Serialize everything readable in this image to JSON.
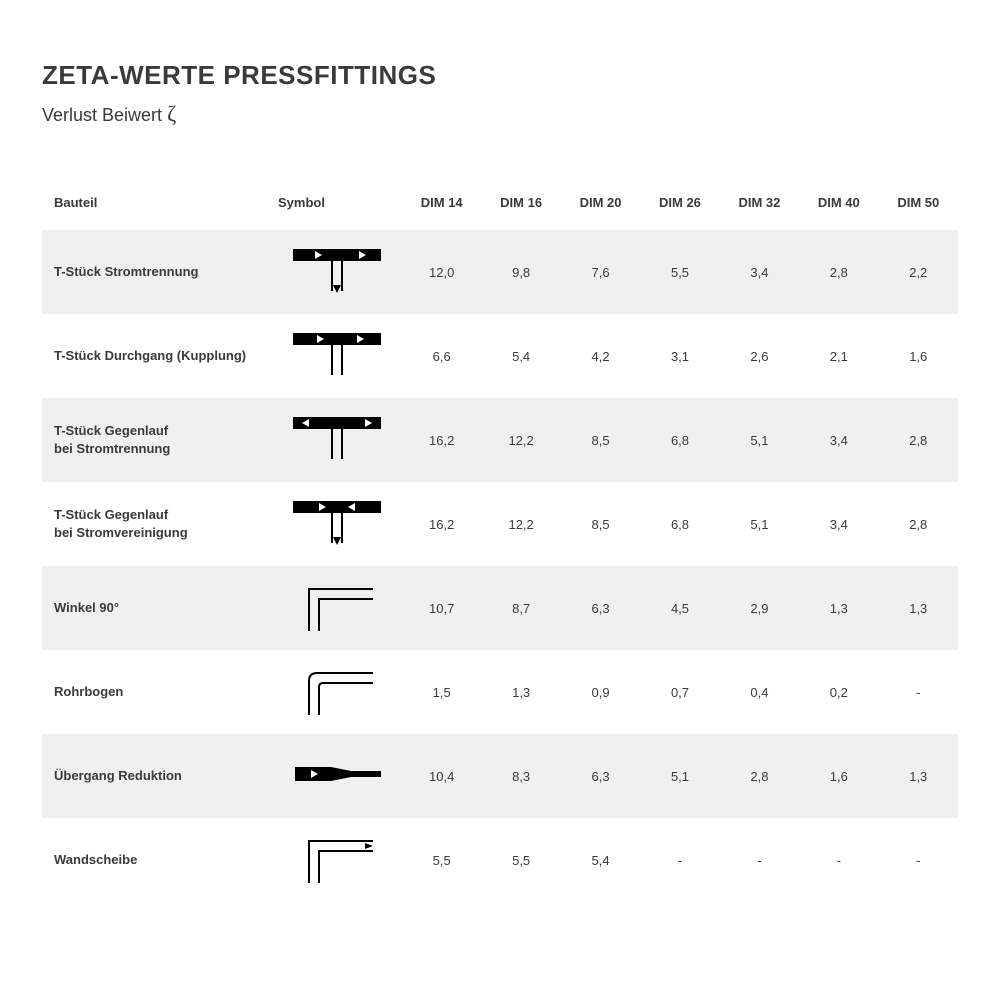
{
  "title": "ZETA-WERTE PRESSFITTINGS",
  "subtitle_prefix": "Verlust Beiwert ",
  "subtitle_symbol": "ζ",
  "colors": {
    "text": "#3a3a3a",
    "row_shade": "#f0f0f0",
    "background": "#ffffff",
    "symbol_stroke": "#000000"
  },
  "table": {
    "header_bauteil": "Bauteil",
    "header_symbol": "Symbol",
    "dim_headers": [
      "DIM 14",
      "DIM 16",
      "DIM 20",
      "DIM 26",
      "DIM 32",
      "DIM 40",
      "DIM 50"
    ],
    "rows": [
      {
        "name": "T-Stück Stromtrennung",
        "symbol": "t-split",
        "shaded": true,
        "values": [
          "12,0",
          "9,8",
          "7,6",
          "5,5",
          "3,4",
          "2,8",
          "2,2"
        ]
      },
      {
        "name": "T-Stück Durchgang (Kupplung)",
        "symbol": "t-through",
        "shaded": false,
        "values": [
          "6,6",
          "5,4",
          "4,2",
          "3,1",
          "2,6",
          "2,1",
          "1,6"
        ]
      },
      {
        "name": "T-Stück Gegenlauf\nbei Stromtrennung",
        "symbol": "t-counter-split",
        "shaded": true,
        "values": [
          "16,2",
          "12,2",
          "8,5",
          "6,8",
          "5,1",
          "3,4",
          "2,8"
        ]
      },
      {
        "name": "T-Stück Gegenlauf\nbei Stromvereinigung",
        "symbol": "t-counter-merge",
        "shaded": false,
        "values": [
          "16,2",
          "12,2",
          "8,5",
          "6,8",
          "5,1",
          "3,4",
          "2,8"
        ]
      },
      {
        "name": "Winkel 90°",
        "symbol": "elbow-90",
        "shaded": true,
        "values": [
          "10,7",
          "8,7",
          "6,3",
          "4,5",
          "2,9",
          "1,3",
          "1,3"
        ]
      },
      {
        "name": "Rohrbogen",
        "symbol": "pipe-bend",
        "shaded": false,
        "values": [
          "1,5",
          "1,3",
          "0,9",
          "0,7",
          "0,4",
          "0,2",
          "-"
        ]
      },
      {
        "name": "Übergang Reduktion",
        "symbol": "reducer",
        "shaded": true,
        "values": [
          "10,4",
          "8,3",
          "6,3",
          "5,1",
          "2,8",
          "1,6",
          "1,3"
        ]
      },
      {
        "name": "Wandscheibe",
        "symbol": "wall-elbow",
        "shaded": false,
        "values": [
          "5,5",
          "5,5",
          "5,4",
          "-",
          "-",
          "-",
          "-"
        ]
      }
    ]
  }
}
